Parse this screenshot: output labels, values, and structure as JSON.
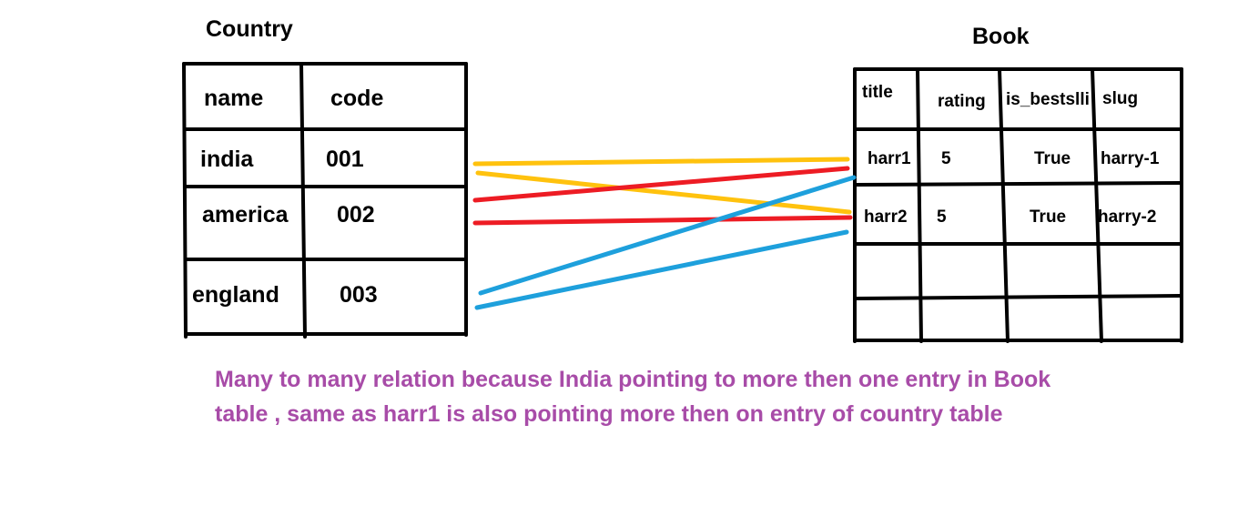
{
  "colors": {
    "border": "#000000",
    "yellow": "#ffc20e",
    "red": "#ed1c24",
    "blue": "#1ea0dc",
    "caption": "#a84ca8"
  },
  "country": {
    "title": "Country",
    "headers": [
      "name",
      "code"
    ],
    "rows": [
      [
        "india",
        "001"
      ],
      [
        "america",
        "002"
      ],
      [
        "england",
        "003"
      ]
    ]
  },
  "book": {
    "title": "Book",
    "headers": [
      "title",
      "rating",
      "is_bestslli",
      "slug"
    ],
    "rows": [
      [
        "harr1",
        "5",
        "True",
        "harry-1"
      ],
      [
        "harr2",
        "5",
        "True",
        "harry-2"
      ],
      [
        "",
        "",
        "",
        ""
      ],
      [
        "",
        "",
        "",
        ""
      ]
    ]
  },
  "relations": [
    {
      "from": "india",
      "to": "harr1",
      "color": "yellow"
    },
    {
      "from": "india",
      "to": "harr2",
      "color": "yellow"
    },
    {
      "from": "america",
      "to": "harr1",
      "color": "red"
    },
    {
      "from": "america",
      "to": "harr2",
      "color": "red"
    },
    {
      "from": "england",
      "to": "harr1",
      "color": "blue"
    },
    {
      "from": "england",
      "to": "harr2",
      "color": "blue"
    }
  ],
  "caption": {
    "line1": "Many to many relation because India pointing to more then one entry in Book",
    "line2": "table , same as harr1 is also pointing more then on entry of country table"
  }
}
